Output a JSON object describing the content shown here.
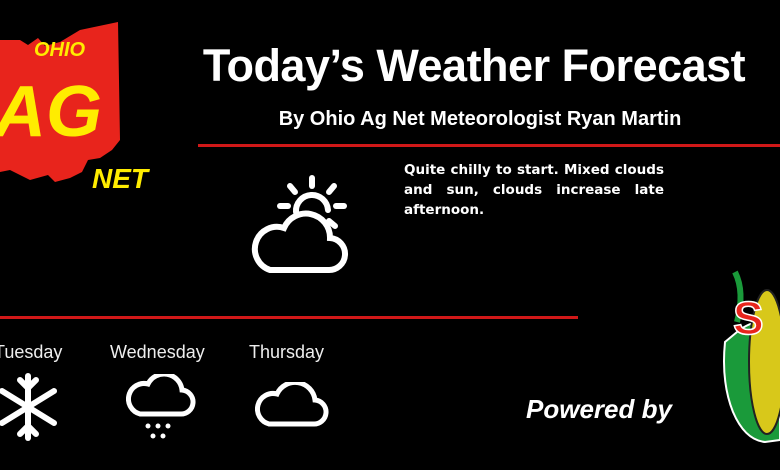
{
  "logo": {
    "text_top": "Ohio",
    "text_main": "AG",
    "text_bottom": "Net",
    "colors": {
      "state": "#e8241c",
      "text": "#ffec00"
    }
  },
  "header": {
    "title": "Today’s Weather Forecast",
    "subtitle": "By Ohio Ag Net Meteorologist Ryan Martin",
    "rule_color": "#d01818"
  },
  "today": {
    "icon": "partly-cloudy-icon",
    "summary": "Quite chilly to start. Mixed clouds and sun, clouds increase late afternoon."
  },
  "outlook": [
    {
      "day": "Tuesday",
      "icon": "snowflake-icon"
    },
    {
      "day": "Wednesday",
      "icon": "cloud-snow-icon"
    },
    {
      "day": "Thursday",
      "icon": "cloud-icon"
    }
  ],
  "sponsor": {
    "label": "Powered by",
    "logo_letters": "S"
  }
}
